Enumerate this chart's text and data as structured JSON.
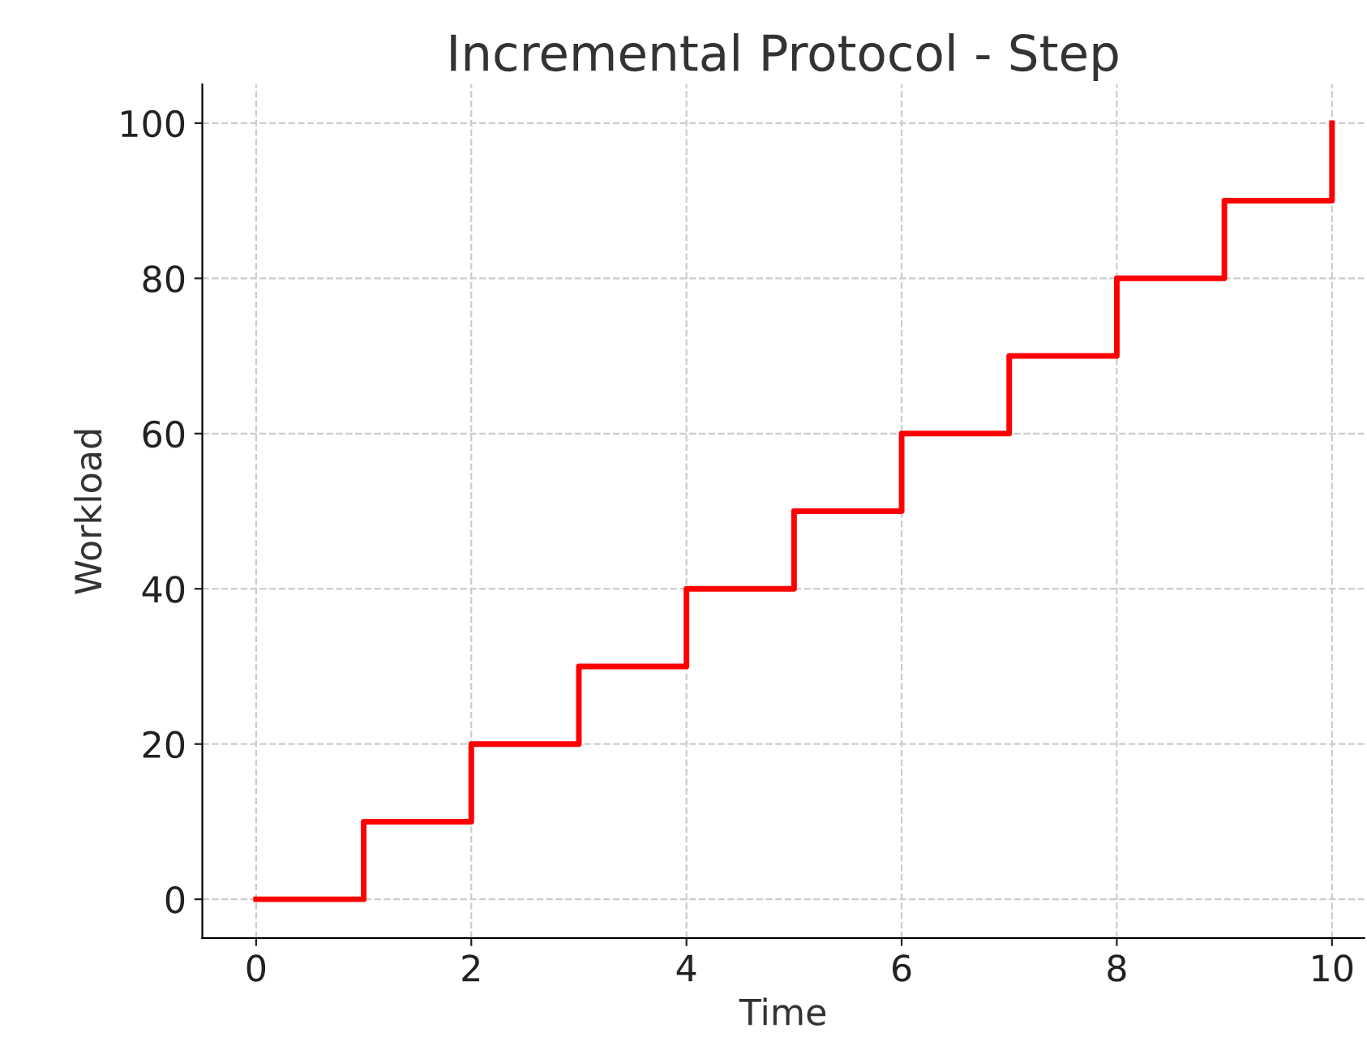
{
  "chart_data": {
    "type": "step",
    "title": "Incremental Protocol - Step",
    "xlabel": "Time",
    "ylabel": "Workload",
    "x": [
      0,
      1,
      2,
      3,
      4,
      5,
      6,
      7,
      8,
      9,
      10
    ],
    "series": [
      {
        "color": "#ff0000",
        "values": [
          0,
          10,
          20,
          30,
          40,
          50,
          60,
          70,
          80,
          90,
          100
        ]
      }
    ],
    "xlim": [
      -0.5,
      10.3
    ],
    "ylim": [
      -5,
      105
    ],
    "xticks": [
      0,
      2,
      4,
      6,
      8,
      10
    ],
    "yticks": [
      0,
      20,
      40,
      60,
      80,
      100
    ],
    "grid": true,
    "line_style": "solid"
  }
}
